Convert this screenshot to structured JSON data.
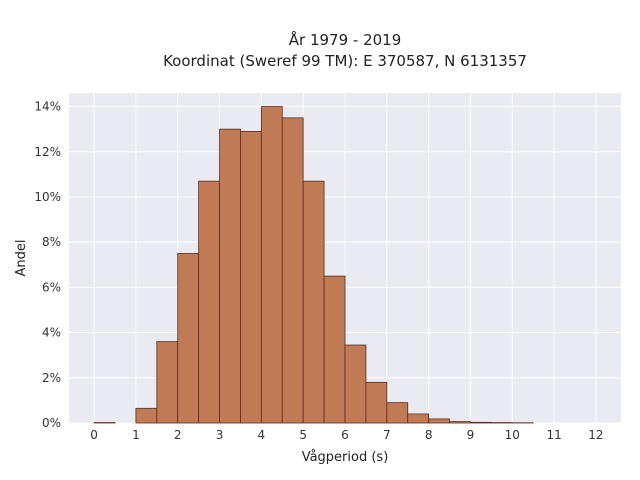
{
  "chart_data": {
    "type": "bar",
    "title_line1": "År 1979 - 2019",
    "title_line2": "Koordinat (Sweref 99 TM): E 370587, N 6131357",
    "xlabel": "Vågperiod (s)",
    "ylabel": "Andel",
    "xlim": [
      -0.6,
      12.6
    ],
    "ylim": [
      0,
      14.6
    ],
    "x_ticks": [
      0,
      1,
      2,
      3,
      4,
      5,
      6,
      7,
      8,
      9,
      10,
      11,
      12
    ],
    "y_ticks": [
      0,
      2,
      4,
      6,
      8,
      10,
      12,
      14
    ],
    "y_tick_labels": [
      "0%",
      "2%",
      "4%",
      "6%",
      "8%",
      "10%",
      "12%",
      "14%"
    ],
    "bin_width": 0.5,
    "bin_starts": [
      0,
      0.5,
      1.0,
      1.5,
      2.0,
      2.5,
      3.0,
      3.5,
      4.0,
      4.5,
      5.0,
      5.5,
      6.0,
      6.5,
      7.0,
      7.5,
      8.0,
      8.5,
      9.0,
      9.5,
      10.0
    ],
    "values": [
      0.02,
      0.0,
      0.65,
      3.6,
      7.5,
      10.7,
      13.0,
      12.9,
      14.0,
      13.5,
      10.7,
      6.5,
      3.45,
      1.8,
      0.9,
      0.4,
      0.18,
      0.06,
      0.03,
      0.02,
      0.01
    ],
    "bar_color": "#c07a55",
    "bar_edge_color": "#5a2e1a",
    "plot_background": "#eaeaf2",
    "grid_color": "#ffffff",
    "grid": true
  }
}
